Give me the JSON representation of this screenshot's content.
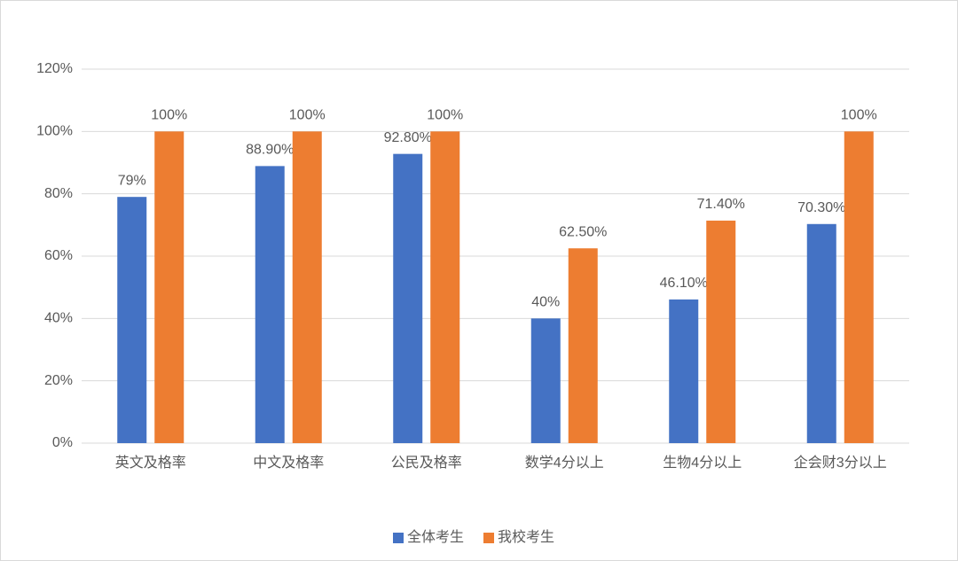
{
  "chart_data": {
    "type": "bar",
    "categories": [
      "英文及格率",
      "中文及格率",
      "公民及格率",
      "数学4分以上",
      "生物4分以上",
      "企会财3分以上"
    ],
    "series": [
      {
        "name": "全体考生",
        "color": "#4472c4",
        "values": [
          79,
          88.9,
          92.8,
          40,
          46.1,
          70.3
        ],
        "value_labels": [
          "79%",
          "88.90%",
          "92.80%",
          "40%",
          "46.10%",
          "70.30%"
        ]
      },
      {
        "name": "我校考生",
        "color": "#ed7d31",
        "values": [
          100,
          100,
          100,
          62.5,
          71.4,
          100
        ],
        "value_labels": [
          "100%",
          "100%",
          "100%",
          "62.50%",
          "71.40%",
          "100%"
        ]
      }
    ],
    "ylim": [
      0,
      120
    ],
    "yticks": [
      {
        "value": 0,
        "label": "0%"
      },
      {
        "value": 20,
        "label": "20%"
      },
      {
        "value": 40,
        "label": "40%"
      },
      {
        "value": 60,
        "label": "60%"
      },
      {
        "value": 80,
        "label": "80%"
      },
      {
        "value": 100,
        "label": "100%"
      },
      {
        "value": 120,
        "label": "120%"
      }
    ],
    "grid": true,
    "legend": "bottom"
  }
}
